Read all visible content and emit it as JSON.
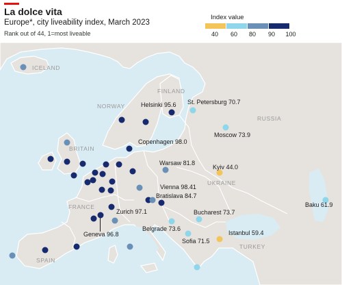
{
  "header": {
    "title": "La dolce vita",
    "subtitle": "Europe*, city liveability index, March 2023",
    "rank_note": "Rank out of 44, 1=most liveable"
  },
  "legend": {
    "title": "Index value",
    "ticks": [
      "40",
      "60",
      "80",
      "90",
      "100"
    ],
    "colors": [
      "#f2c45a",
      "#8fd6ea",
      "#6a90b8",
      "#172a6e"
    ]
  },
  "countries": {
    "iceland": "ICELAND",
    "finland": "FINLAND",
    "norway": "NORWAY",
    "russia": "RUSSIA",
    "britain": "BRITAIN",
    "ukraine": "UKRAINE",
    "france": "FRANCE",
    "turkey": "TURKEY",
    "spain": "SPAIN"
  },
  "cities": {
    "helsinki": "Helsinki 95.6",
    "st_petersburg": "St. Petersburg 70.7",
    "moscow": "Moscow 73.9",
    "copenhagen": "Copenhagen 98.0",
    "warsaw": "Warsaw 81.8",
    "kyiv": "Kyiv 44.0",
    "vienna": "Vienna 98.41",
    "bratislava": "Bratislava 84.7",
    "zurich": "Zurich 97.1",
    "geneva": "Geneva 96.8",
    "bucharest": "Bucharest 73.7",
    "belgrade": "Belgrade 73.6",
    "sofia": "Sofia 71.5",
    "istanbul": "Istanbul 59.4",
    "baku": "Baku 61.9"
  }
}
